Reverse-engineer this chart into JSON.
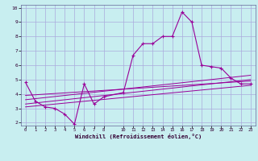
{
  "title": "",
  "xlabel": "Windchill (Refroidissement éolien,°C)",
  "background_color": "#c8eef0",
  "grid_color": "#aaaadd",
  "line_color": "#990099",
  "xlim": [
    -0.5,
    23.5
  ],
  "ylim": [
    1.8,
    10.2
  ],
  "x_ticks": [
    0,
    1,
    2,
    3,
    4,
    5,
    6,
    7,
    8,
    10,
    11,
    12,
    13,
    14,
    15,
    16,
    17,
    18,
    19,
    20,
    21,
    22,
    23
  ],
  "y_ticks": [
    2,
    3,
    4,
    5,
    6,
    7,
    8,
    9,
    10
  ],
  "series1_x": [
    0,
    1,
    2,
    3,
    4,
    5,
    6,
    7,
    8,
    10,
    11,
    12,
    13,
    14,
    15,
    16,
    17,
    18,
    19,
    20,
    21,
    22,
    23
  ],
  "series1_y": [
    4.8,
    3.5,
    3.1,
    3.0,
    2.6,
    1.9,
    4.7,
    3.3,
    3.8,
    4.1,
    6.7,
    7.5,
    7.5,
    8.0,
    8.0,
    9.7,
    9.0,
    6.0,
    5.9,
    5.8,
    5.1,
    4.7,
    4.7
  ],
  "series2_x": [
    0,
    23
  ],
  "series2_y": [
    3.1,
    4.6
  ],
  "series3_x": [
    0,
    23
  ],
  "series3_y": [
    3.3,
    5.0
  ],
  "series4_x": [
    0,
    23
  ],
  "series4_y": [
    3.6,
    5.3
  ],
  "series5_x": [
    0,
    23
  ],
  "series5_y": [
    3.9,
    4.9
  ]
}
